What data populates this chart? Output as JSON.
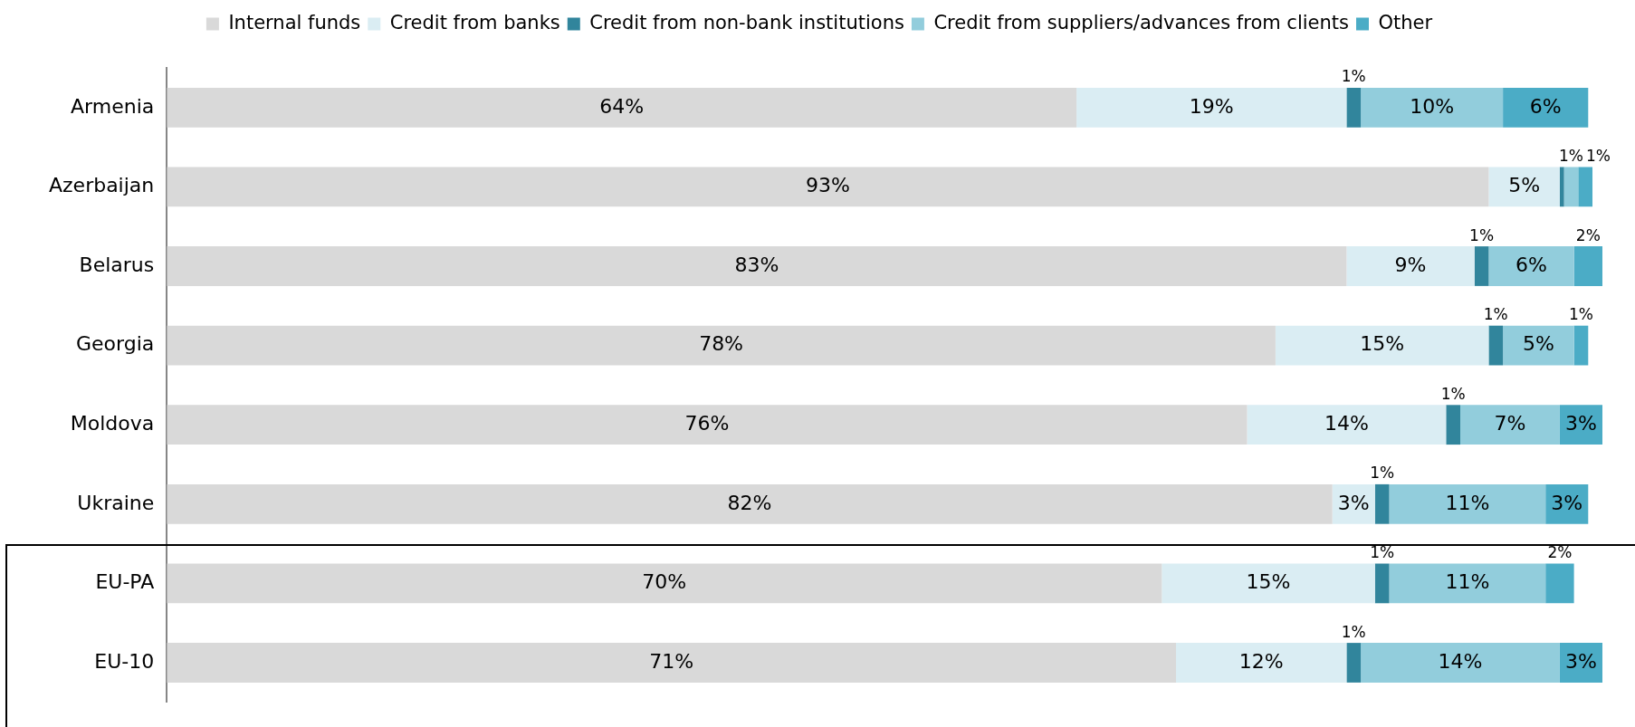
{
  "chart_data": {
    "type": "bar",
    "orientation": "horizontal",
    "stacked": true,
    "legend": "top",
    "grid": false,
    "tick_labels": "y",
    "categories": [
      "Armenia",
      "Azerbaijan",
      "Belarus",
      "Georgia",
      "Moldova",
      "Ukraine",
      "EU-PA",
      "EU-10"
    ],
    "xlim": [
      0,
      101
    ],
    "series": [
      {
        "name": "Internal funds",
        "color": "#d9d9d9",
        "values": [
          64,
          93,
          83,
          78,
          76,
          82,
          70,
          71
        ],
        "value_labels": [
          "64%",
          "93%",
          "83%",
          "78%",
          "76%",
          "82%",
          "70%",
          "71%"
        ]
      },
      {
        "name": "Credit from banks",
        "color": "#daedf3",
        "values": [
          19,
          5,
          9,
          15,
          14,
          3,
          15,
          12
        ],
        "value_labels": [
          "19%",
          "5%",
          "9%",
          "15%",
          "14%",
          "3%",
          "15%",
          "12%"
        ]
      },
      {
        "name": "Credit from non-bank institutions",
        "color": "#31859c",
        "values": [
          1,
          0.3,
          1,
          1,
          1,
          1,
          1,
          1
        ],
        "value_labels": [
          "1%",
          null,
          "1%",
          "1%",
          "1%",
          "1%",
          "1%",
          "1%"
        ]
      },
      {
        "name": "Credit from suppliers/advances from clients",
        "color": "#92cddc",
        "values": [
          10,
          1,
          6,
          5,
          7,
          11,
          11,
          14
        ],
        "value_labels": [
          "10%",
          "1%",
          "6%",
          "5%",
          "7%",
          "11%",
          "11%",
          "14%"
        ]
      },
      {
        "name": "Other",
        "color": "#4bacc6",
        "values": [
          6,
          1,
          2,
          1,
          3,
          3,
          2,
          3
        ],
        "value_labels": [
          "6%",
          "1%",
          "2%",
          "1%",
          "3%",
          "3%",
          "2%",
          "3%"
        ]
      }
    ]
  }
}
